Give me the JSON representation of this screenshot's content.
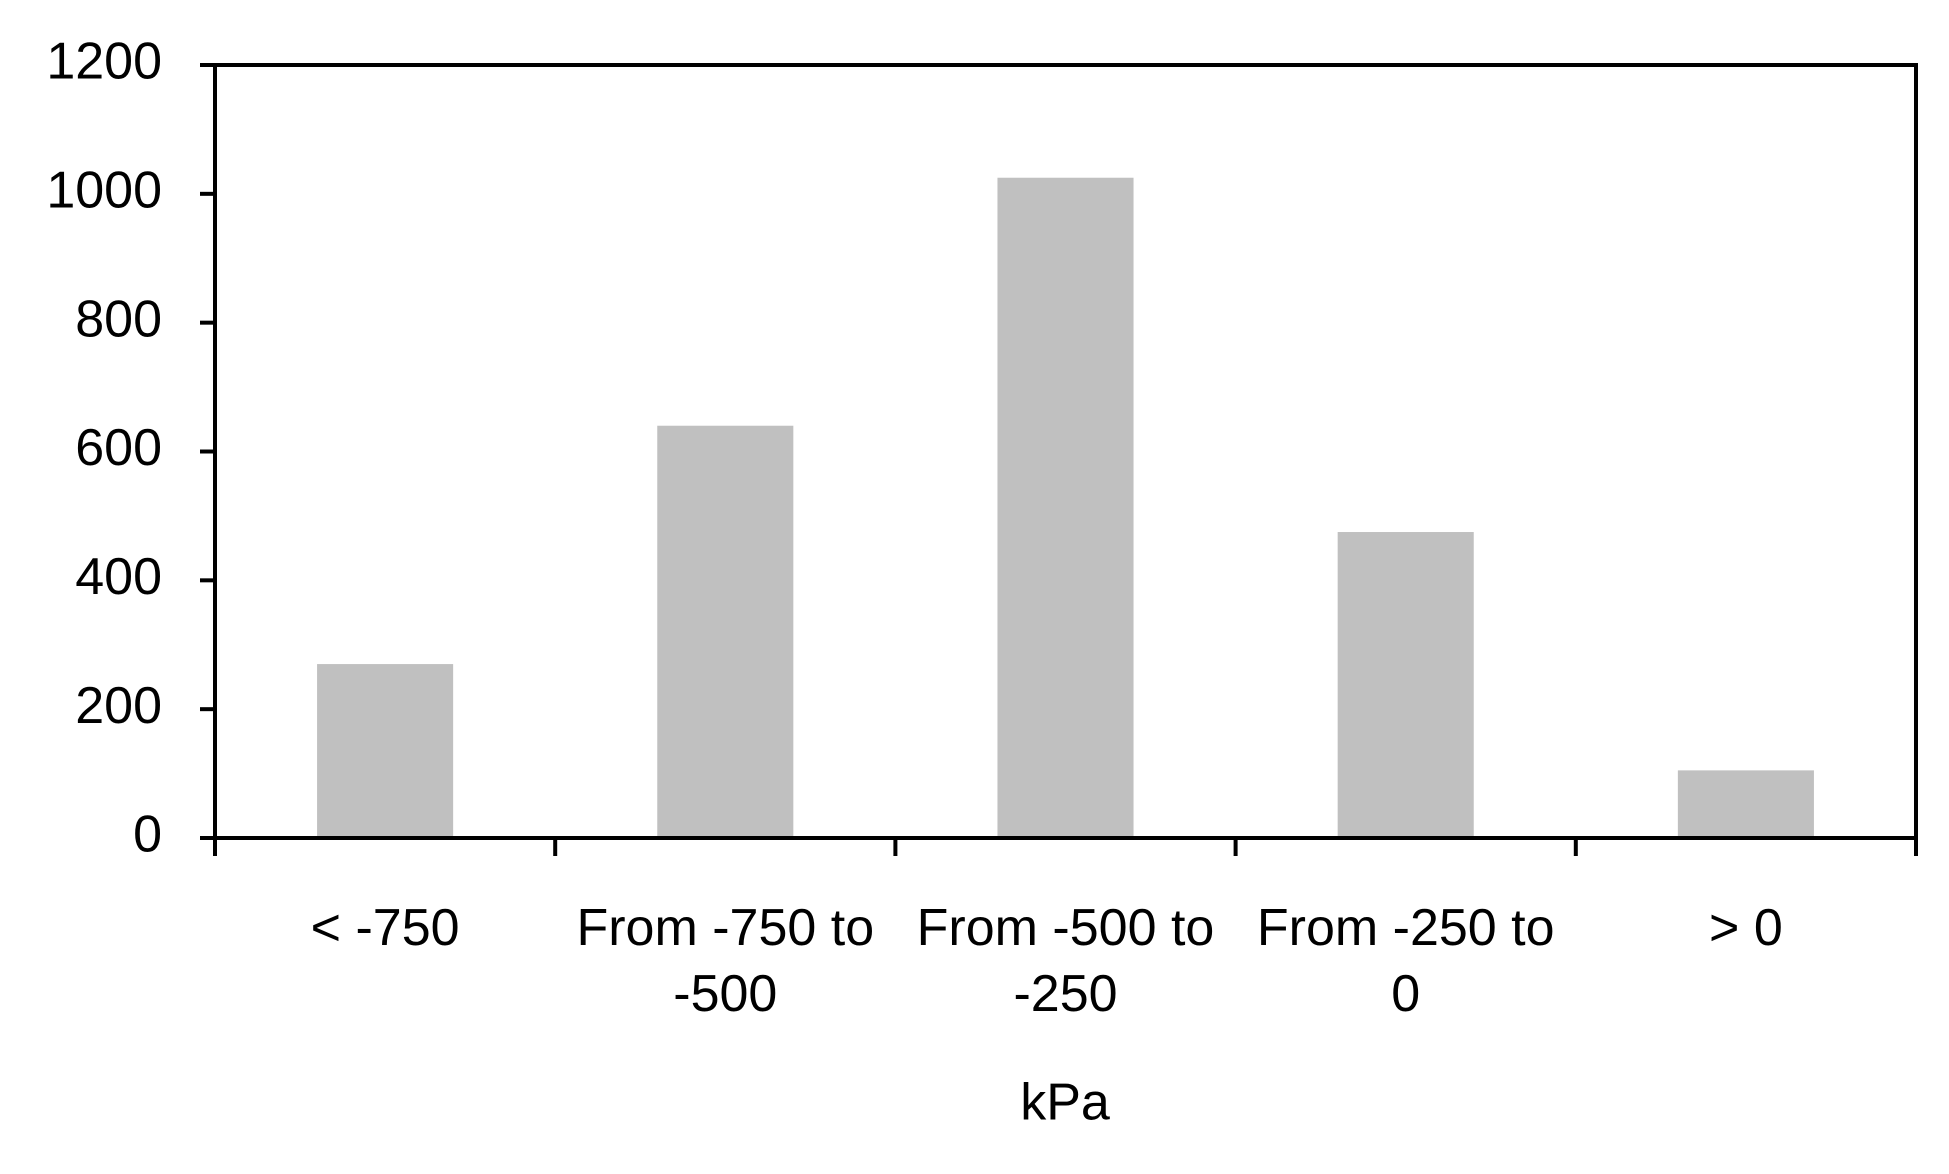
{
  "chart_data": {
    "type": "bar",
    "x_label": "kPa",
    "categories": [
      "< -750",
      "From -750 to -500",
      "From -500 to -250",
      "From -250 to 0",
      "> 0"
    ],
    "values": [
      270,
      640,
      1025,
      475,
      105
    ],
    "color": "#c0c0c0",
    "ylim": [
      0,
      1200
    ],
    "yticks": [
      0,
      200,
      400,
      600,
      800,
      1000,
      1200
    ],
    "grid": false
  }
}
